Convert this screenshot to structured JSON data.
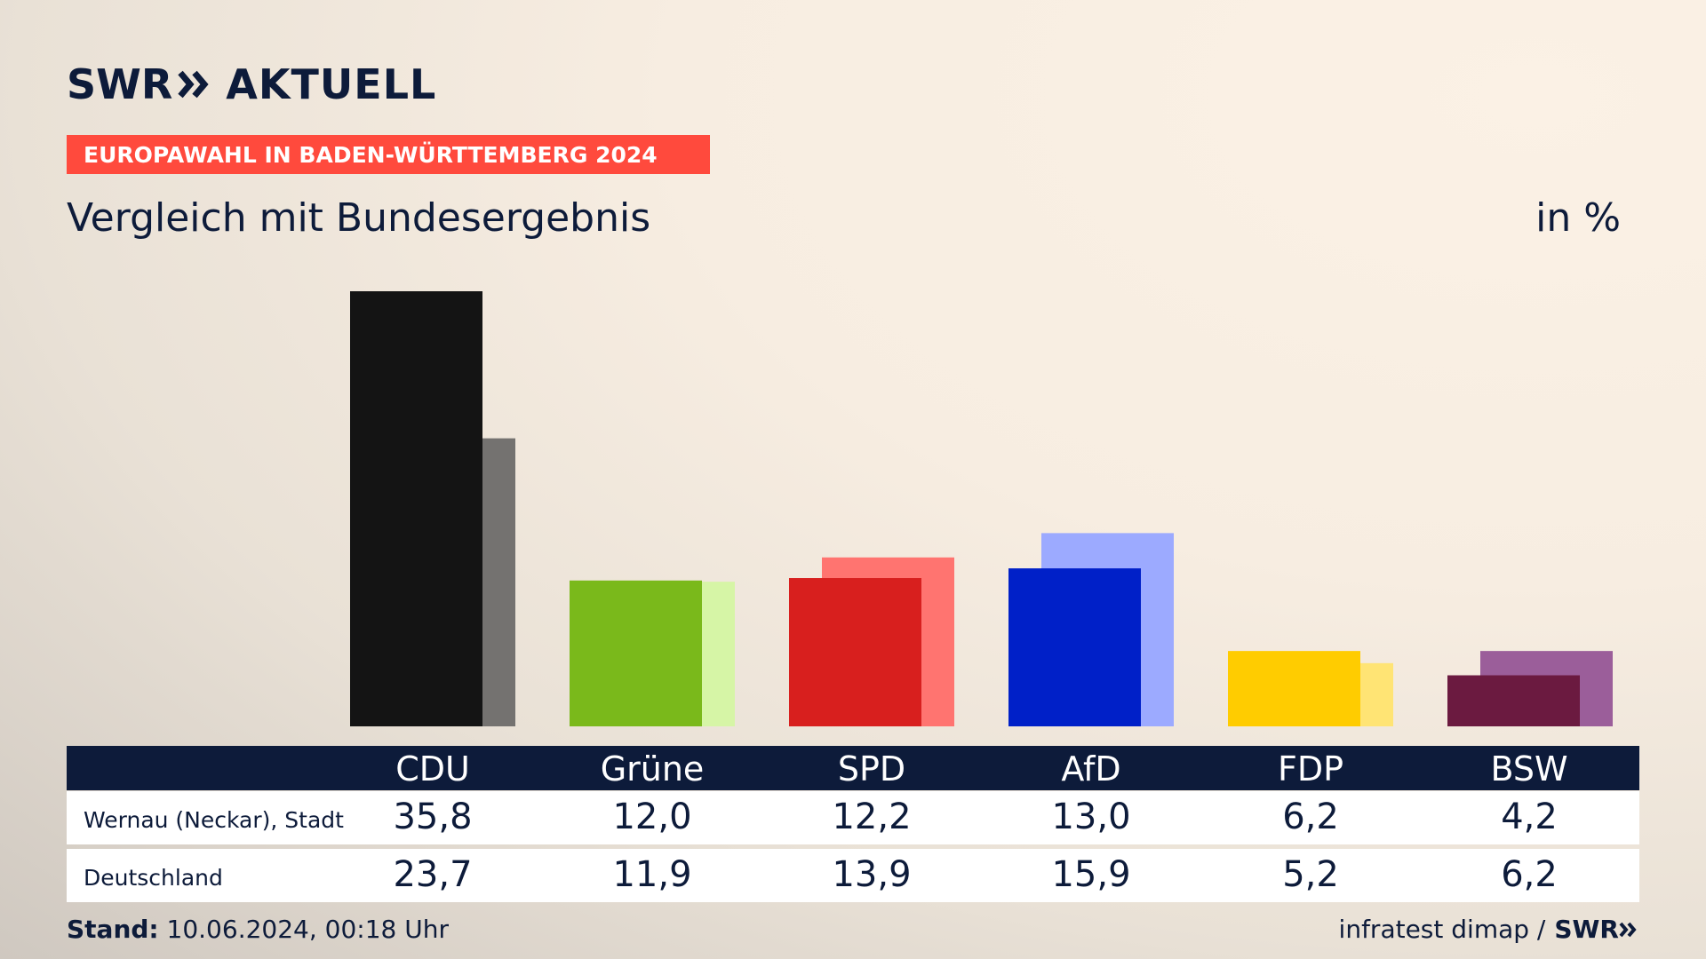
{
  "brand": {
    "swr": "SWR",
    "aktuell": "AKTUELL"
  },
  "banner": "EUROPAWAHL IN BADEN-WÜRTTEMBERG 2024",
  "subtitle": "Vergleich mit Bundesergebnis",
  "unit": "in %",
  "chart_data": {
    "type": "bar",
    "categories": [
      "CDU",
      "Grüne",
      "SPD",
      "AfD",
      "FDP",
      "BSW"
    ],
    "series": [
      {
        "name": "Wernau (Neckar), Stadt",
        "values": [
          35.8,
          12.0,
          12.2,
          13.0,
          6.2,
          4.2
        ],
        "colors": [
          "#141414",
          "#7ab91b",
          "#d81f1e",
          "#0020c8",
          "#ffcc00",
          "#6b1a40"
        ]
      },
      {
        "name": "Deutschland",
        "values": [
          23.7,
          11.9,
          13.9,
          15.9,
          5.2,
          6.2
        ],
        "colors": [
          "#747270",
          "#d6f5a6",
          "#ff7470",
          "#9caaff",
          "#ffe474",
          "#9b5e9a"
        ]
      }
    ],
    "ylim": [
      0,
      35.8
    ]
  },
  "table": {
    "headers": [
      "CDU",
      "Grüne",
      "SPD",
      "AfD",
      "FDP",
      "BSW"
    ],
    "rows": [
      {
        "label": "Wernau (Neckar), Stadt",
        "values": [
          "35,8",
          "12,0",
          "12,2",
          "13,0",
          "6,2",
          "4,2"
        ]
      },
      {
        "label": "Deutschland",
        "values": [
          "23,7",
          "11,9",
          "13,9",
          "15,9",
          "5,2",
          "6,2"
        ]
      }
    ]
  },
  "footer": {
    "stand_label": "Stand:",
    "stand_value": "10.06.2024, 00:18 Uhr",
    "source": "infratest dimap /",
    "swr": "SWR"
  }
}
